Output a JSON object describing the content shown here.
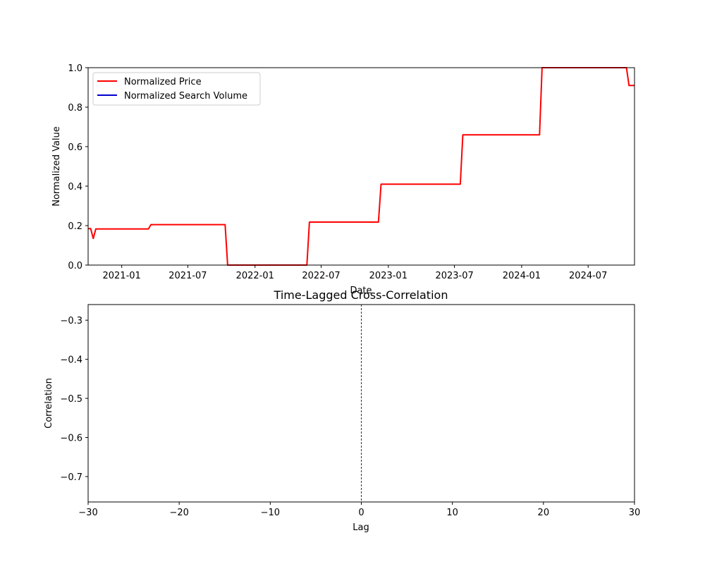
{
  "chart_data": [
    {
      "type": "line",
      "title": "",
      "xlabel": "Date",
      "ylabel": "Normalized Value",
      "xlim": [
        "2020-10-01",
        "2024-11-05"
      ],
      "ylim": [
        0,
        1
      ],
      "x_ticks": [
        "2021-01",
        "2021-07",
        "2022-01",
        "2022-07",
        "2023-01",
        "2023-07",
        "2024-01",
        "2024-07"
      ],
      "y_ticks": [
        "0.0",
        "0.2",
        "0.4",
        "0.6",
        "0.8",
        "1.0"
      ],
      "grid": false,
      "legend": {
        "position": "upper-left",
        "entries": [
          {
            "label": "Normalized Price",
            "color": "#ff0000"
          },
          {
            "label": "Normalized Search Volume",
            "color": "#0000cc"
          }
        ]
      },
      "series": [
        {
          "name": "Normalized Price",
          "color": "#ff0000",
          "points": [
            [
              "2020-10-01",
              0.185
            ],
            [
              "2020-10-08",
              0.185
            ],
            [
              "2020-10-15",
              0.135
            ],
            [
              "2020-10-22",
              0.183
            ],
            [
              "2021-03-15",
              0.183
            ],
            [
              "2021-03-22",
              0.205
            ],
            [
              "2021-10-11",
              0.205
            ],
            [
              "2021-10-18",
              0.0
            ],
            [
              "2022-05-23",
              0.0
            ],
            [
              "2022-05-30",
              0.218
            ],
            [
              "2022-12-05",
              0.218
            ],
            [
              "2022-12-12",
              0.41
            ],
            [
              "2023-07-17",
              0.41
            ],
            [
              "2023-07-24",
              0.66
            ],
            [
              "2024-02-19",
              0.66
            ],
            [
              "2024-02-26",
              1.0
            ],
            [
              "2024-10-14",
              1.0
            ],
            [
              "2024-10-21",
              0.91
            ],
            [
              "2024-11-05",
              0.91
            ]
          ]
        },
        {
          "name": "Normalized Search Volume",
          "color": "#0000cc",
          "points": []
        }
      ]
    },
    {
      "type": "line",
      "title": "Time-Lagged Cross-Correlation",
      "xlabel": "Lag",
      "ylabel": "Correlation",
      "xlim": [
        -30,
        30
      ],
      "ylim": [
        -0.765,
        -0.26
      ],
      "x_ticks": [
        "−30",
        "−20",
        "−10",
        "0",
        "10",
        "20",
        "30"
      ],
      "x_tick_values": [
        -30,
        -20,
        -10,
        0,
        10,
        20,
        30
      ],
      "y_ticks": [
        "−0.3",
        "−0.4",
        "−0.5",
        "−0.6",
        "−0.7"
      ],
      "y_tick_values": [
        -0.3,
        -0.4,
        -0.5,
        -0.6,
        -0.7
      ],
      "grid": false,
      "reference_line": {
        "x": 0,
        "style": "dashed",
        "color": "#000000"
      },
      "series": []
    }
  ]
}
